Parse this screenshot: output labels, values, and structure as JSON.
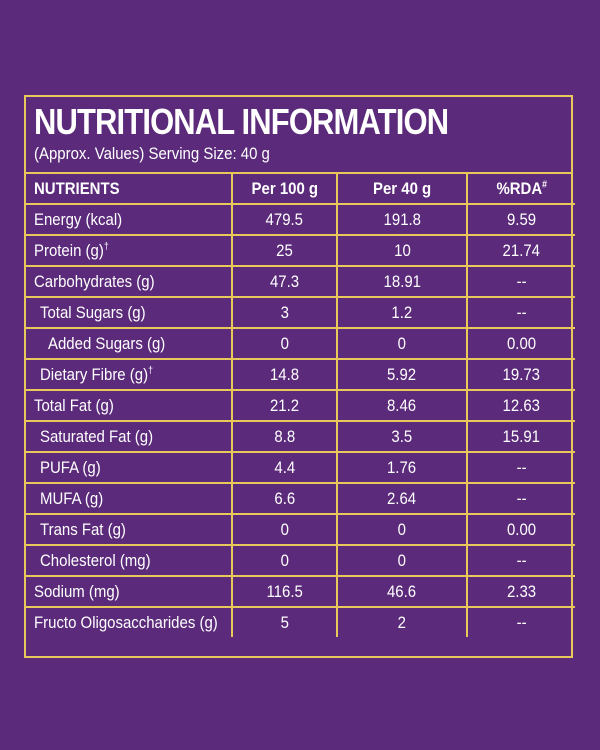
{
  "panel": {
    "title": "NUTRITIONAL INFORMATION",
    "subtitle": "(Approx. Values) Serving Size: 40 g"
  },
  "columns": {
    "nutrient": "NUTRIENTS",
    "per100": "Per 100 g",
    "per40": "Per 40 g",
    "rda": "%RDA",
    "rda_mark": "#"
  },
  "rows": [
    {
      "name": "Energy (kcal)",
      "mark": "",
      "per100": "479.5",
      "per40": "191.8",
      "rda": "9.59"
    },
    {
      "name": "Protein (g)",
      "mark": "†",
      "per100": "25",
      "per40": "10",
      "rda": "21.74"
    },
    {
      "name": "Carbohydrates (g)",
      "mark": "",
      "per100": "47.3",
      "per40": "18.91",
      "rda": "--"
    },
    {
      "name": "Total Sugars (g)",
      "mark": "",
      "per100": "3",
      "per40": "1.2",
      "rda": "--"
    },
    {
      "name": "Added Sugars (g)",
      "mark": "",
      "per100": "0",
      "per40": "0",
      "rda": "0.00"
    },
    {
      "name": "Dietary Fibre (g)",
      "mark": "†",
      "per100": "14.8",
      "per40": "5.92",
      "rda": "19.73"
    },
    {
      "name": "Total Fat (g)",
      "mark": "",
      "per100": "21.2",
      "per40": "8.46",
      "rda": "12.63"
    },
    {
      "name": "Saturated Fat (g)",
      "mark": "",
      "per100": "8.8",
      "per40": "3.5",
      "rda": "15.91"
    },
    {
      "name": "PUFA (g)",
      "mark": "",
      "per100": "4.4",
      "per40": "1.76",
      "rda": "--"
    },
    {
      "name": "MUFA (g)",
      "mark": "",
      "per100": "6.6",
      "per40": "2.64",
      "rda": "--"
    },
    {
      "name": "Trans Fat (g)",
      "mark": "",
      "per100": "0",
      "per40": "0",
      "rda": "0.00"
    },
    {
      "name": "Cholesterol (mg)",
      "mark": "",
      "per100": "0",
      "per40": "0",
      "rda": "--"
    },
    {
      "name": "Sodium (mg)",
      "mark": "",
      "per100": "116.5",
      "per40": "46.6",
      "rda": "2.33"
    },
    {
      "name": "Fructo Oligosaccharides (g)",
      "mark": "",
      "per100": "5",
      "per40": "2",
      "rda": "--"
    }
  ],
  "colors": {
    "background": "#5b2a7a",
    "border": "#e8c85a",
    "text": "#ffffff"
  }
}
